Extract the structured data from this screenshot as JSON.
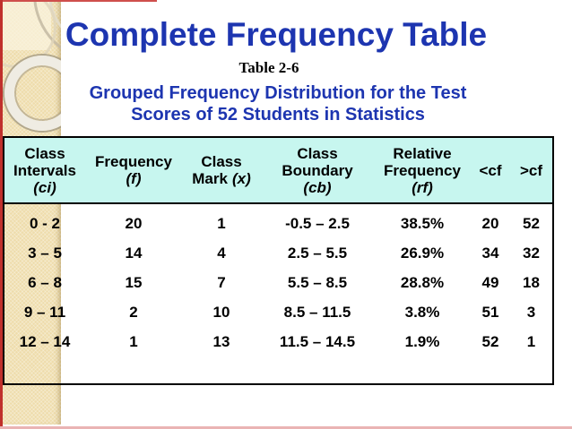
{
  "slide": {
    "title": "Complete Frequency Table",
    "caption": "Table 2-6",
    "subtitle_line1": "Grouped Frequency Distribution for the Test",
    "subtitle_line2": "Scores of 52 Students in Statistics"
  },
  "colors": {
    "title_blue": "#1d35b0",
    "header_cyan": "#c7f6ef",
    "sidebar_tan": "#eedcab",
    "accent_red": "#c0302c"
  },
  "table": {
    "header": {
      "ci": {
        "line1": "Class",
        "line2": "Intervals",
        "sub": "(ci)"
      },
      "f": {
        "line1": "Frequency",
        "sub": "(f)"
      },
      "x": {
        "line1": "Class",
        "line2": "Mark",
        "sub": "(x)"
      },
      "cb": {
        "line1": "Class",
        "line2": "Boundary",
        "sub": "(cb)"
      },
      "rf": {
        "line1": "Relative",
        "line2": "Frequency",
        "sub": "(rf)"
      },
      "lcf": {
        "line1": "<cf"
      },
      "gcf": {
        "line1": ">cf"
      }
    },
    "rows": [
      {
        "ci": "0 - 2",
        "f": "20",
        "x": "1",
        "cb": "-0.5 – 2.5",
        "rf": "38.5%",
        "lcf": "20",
        "gcf": "52"
      },
      {
        "ci": "3 – 5",
        "f": "14",
        "x": "4",
        "cb": "2.5 – 5.5",
        "rf": "26.9%",
        "lcf": "34",
        "gcf": "32"
      },
      {
        "ci": "6 – 8",
        "f": "15",
        "x": "7",
        "cb": "5.5 – 8.5",
        "rf": "28.8%",
        "lcf": "49",
        "gcf": "18"
      },
      {
        "ci": "9 – 11",
        "f": "2",
        "x": "10",
        "cb": "8.5 – 11.5",
        "rf": "3.8%",
        "lcf": "51",
        "gcf": "3"
      },
      {
        "ci": "12 – 14",
        "f": "1",
        "x": "13",
        "cb": "11.5 – 14.5",
        "rf": "1.9%",
        "lcf": "52",
        "gcf": "1"
      }
    ]
  }
}
